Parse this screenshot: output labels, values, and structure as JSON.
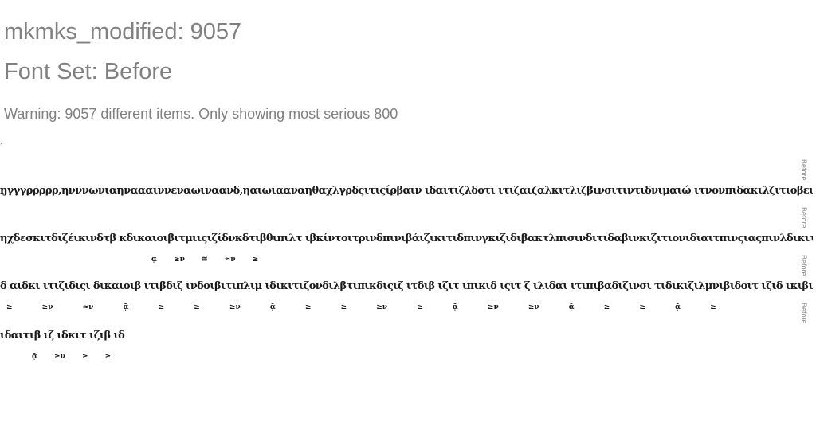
{
  "header": {
    "title": "mkmks_modified: 9057",
    "font_set": "Font Set: Before",
    "warning": "Warning: 9057 different items. Only showing most serious 800"
  },
  "rows": [
    {
      "glyphs": "ŋγγγρρρρρ,ηνννωνιαηναααιννεναωιναανδ,ηαιωιααναηθαχλγρδςιτιςίρβαιν ιδαιτιζλδοτι ιτιζαιζαλκιτλιζβινσιτιντιδνιμαιώ ιτνονπιδακιλζιτιοβεινζιτβιζαιτιλζαιτιαιβιτλιβαιδπινλζιτβιζ",
      "label": "Before"
    },
    {
      "glyphs": "ηχδεσκιτδιζέικινδτβ κδικαιοιβιτμιιςιζίδνκδτιβθιπιλτ ιβκίντοιτρινδπινιβάιζικιτιδπινγκιζιδιβακτλπισινδιτιδαβινκιζιτιονιδιαιτπινςιαςπινλδικιτνιπκιλμιαβιτδιαιτ",
      "label": "Before"
    },
    {
      "glyphs": "ᾷ ≥ν ≅ ≈ν ≥",
      "label": "Before"
    },
    {
      "glyphs": "δ αιδκι ιτιζιδιςι δικαιοιβ ιτιβδιζ ινδοιβιτιπλιμ ιδικιτιζονδιλβτιπικδιςιζ ιτδιβ ιζιτ ιπικιδ ιςιτ ζ ιλιδαι ιτιπιβαδιζινσι τιδικιζιλμνιβιδοιτ ιζιδ ικιβιτιλιδν ιζιπιτδικιβιδιζ",
      "label": "Before"
    },
    {
      "glyphs": "≥ ≥ν ≈ν ᾷ ≥ ≥ ≥ν ᾷ ≥ ≥ ≥ν ≥ ᾷ ≥ν ≥ν ᾷ ≥ ≥ ᾷ ≥",
      "label": "Before"
    },
    {
      "glyphs": "ιδαιτιβ ιζ ιδκιτ ιζιβ ιδ",
      "label": ""
    },
    {
      "glyphs": "ᾷ ≥ν ≥ ≥",
      "label": ""
    }
  ]
}
